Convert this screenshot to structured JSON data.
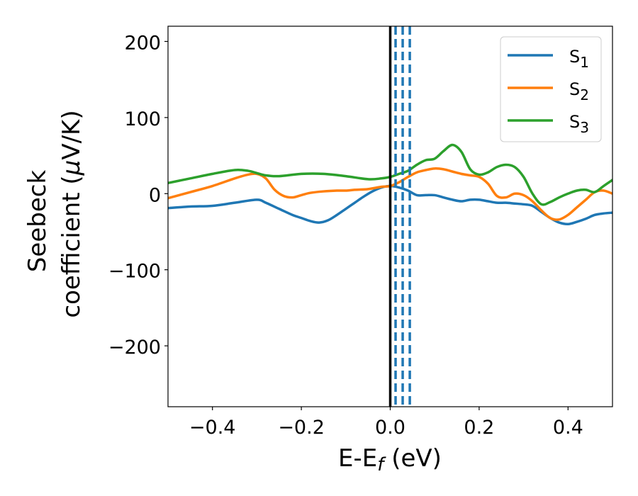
{
  "chart_data": {
    "type": "line",
    "xlabel": {
      "main": "E-E",
      "sub": "f",
      "unit": " (eV)"
    },
    "ylabel": {
      "line1": "Seebeck",
      "line2_pre": "coefficient  (",
      "mu": "μ",
      "line2_post": "V/K)"
    },
    "xlim": [
      -0.5,
      0.5
    ],
    "ylim": [
      -280,
      220
    ],
    "xticks": [
      -0.4,
      -0.2,
      0.0,
      0.2,
      0.4
    ],
    "xtick_labels": [
      "−0.4",
      "−0.2",
      "0.0",
      "0.2",
      "0.4"
    ],
    "yticks": [
      200,
      100,
      0,
      -100,
      -200
    ],
    "ytick_labels": [
      "200",
      "100",
      "0",
      "−100",
      "−200"
    ],
    "grid": false,
    "legend_position": "top-right",
    "reference_lines": {
      "solid": {
        "x": 0.0,
        "color": "#000000"
      },
      "dashed": {
        "x": [
          0.012,
          0.028,
          0.044
        ],
        "color": "#1f77b4"
      }
    },
    "series": [
      {
        "name": "S",
        "sub": "1",
        "color": "#1f77b4",
        "x": [
          -0.5,
          -0.45,
          -0.4,
          -0.35,
          -0.3,
          -0.28,
          -0.25,
          -0.22,
          -0.2,
          -0.18,
          -0.16,
          -0.14,
          -0.12,
          -0.1,
          -0.08,
          -0.06,
          -0.04,
          -0.02,
          0.0,
          0.02,
          0.04,
          0.06,
          0.08,
          0.1,
          0.12,
          0.14,
          0.16,
          0.18,
          0.2,
          0.22,
          0.24,
          0.26,
          0.28,
          0.3,
          0.32,
          0.34,
          0.36,
          0.38,
          0.4,
          0.42,
          0.44,
          0.46,
          0.48,
          0.5
        ],
        "y": [
          -19,
          -17,
          -16,
          -12,
          -8,
          -12,
          -20,
          -28,
          -32,
          -36,
          -38,
          -35,
          -28,
          -20,
          -12,
          -4,
          3,
          8,
          10,
          8,
          4,
          -2,
          -2,
          -2,
          -5,
          -8,
          -10,
          -8,
          -8,
          -10,
          -12,
          -12,
          -13,
          -14,
          -16,
          -24,
          -32,
          -38,
          -40,
          -37,
          -33,
          -28,
          -26,
          -25
        ]
      },
      {
        "name": "S",
        "sub": "2",
        "color": "#ff7f0e",
        "x": [
          -0.5,
          -0.45,
          -0.4,
          -0.35,
          -0.32,
          -0.3,
          -0.28,
          -0.26,
          -0.24,
          -0.22,
          -0.2,
          -0.18,
          -0.15,
          -0.12,
          -0.1,
          -0.08,
          -0.05,
          -0.02,
          0.0,
          0.02,
          0.04,
          0.06,
          0.08,
          0.1,
          0.12,
          0.14,
          0.16,
          0.18,
          0.2,
          0.22,
          0.24,
          0.26,
          0.28,
          0.3,
          0.32,
          0.34,
          0.36,
          0.38,
          0.4,
          0.42,
          0.44,
          0.46,
          0.48,
          0.5
        ],
        "y": [
          -6,
          2,
          10,
          20,
          25,
          26,
          20,
          5,
          -3,
          -5,
          -2,
          1,
          3,
          4,
          4,
          5,
          6,
          9,
          10,
          15,
          22,
          28,
          31,
          33,
          32,
          29,
          26,
          24,
          22,
          13,
          -3,
          -5,
          0,
          -2,
          -10,
          -22,
          -32,
          -34,
          -28,
          -18,
          -8,
          2,
          4,
          0
        ]
      },
      {
        "name": "S",
        "sub": "3",
        "color": "#2ca02c",
        "x": [
          -0.5,
          -0.45,
          -0.4,
          -0.35,
          -0.32,
          -0.3,
          -0.28,
          -0.25,
          -0.2,
          -0.15,
          -0.1,
          -0.05,
          -0.02,
          0.0,
          0.02,
          0.04,
          0.06,
          0.08,
          0.1,
          0.12,
          0.14,
          0.16,
          0.18,
          0.2,
          0.22,
          0.24,
          0.26,
          0.28,
          0.3,
          0.32,
          0.34,
          0.36,
          0.38,
          0.4,
          0.42,
          0.44,
          0.46,
          0.48,
          0.5
        ],
        "y": [
          14,
          20,
          26,
          31,
          30,
          27,
          24,
          23,
          26,
          26,
          23,
          19,
          20,
          22,
          26,
          30,
          38,
          44,
          46,
          56,
          64,
          55,
          32,
          25,
          28,
          35,
          38,
          35,
          22,
          0,
          -14,
          -11,
          -5,
          0,
          4,
          5,
          2,
          10,
          18
        ]
      }
    ]
  }
}
